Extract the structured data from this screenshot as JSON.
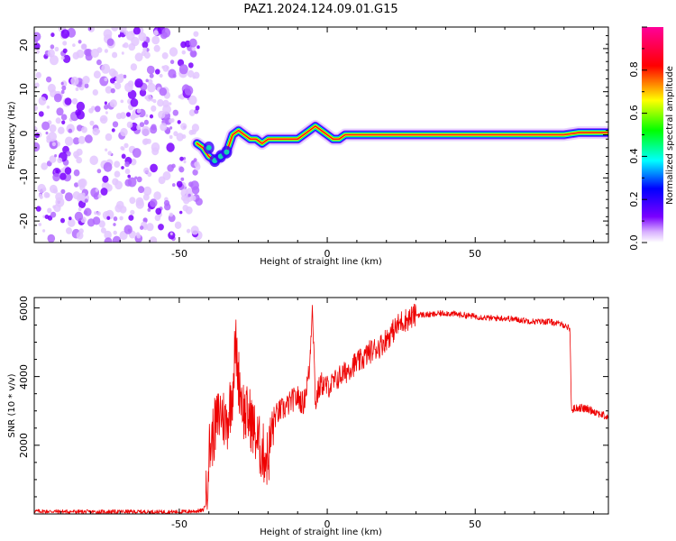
{
  "title": "PAZ1.2024.124.09.01.G15",
  "chart_data": [
    {
      "type": "heatmap",
      "xlabel": "Height of straight line (km)",
      "ylabel": "Frequency (Hz)",
      "xlim": [
        -99,
        95
      ],
      "ylim": [
        -25,
        25
      ],
      "x_ticks": [
        "-50",
        "0",
        "50"
      ],
      "y_ticks": [
        "-20",
        "-10",
        "0",
        "10",
        "20"
      ],
      "colorbar": {
        "label": "Normalized spectral amplitude",
        "range": [
          0,
          1
        ],
        "ticks": [
          "0.0",
          "0.2",
          "0.4",
          "0.6",
          "0.8"
        ],
        "colors": [
          "#ffffff",
          "#d8b0ff",
          "#7a00ff",
          "#0000ff",
          "#00ffff",
          "#00ff00",
          "#ffff00",
          "#ff0000",
          "#ff0099"
        ]
      },
      "noise_region_x": [
        -99,
        -43
      ],
      "ridge": {
        "x": [
          -44,
          -42,
          -40,
          -38,
          -36,
          -34,
          -32,
          -30,
          -28,
          -26,
          -24,
          -22,
          -20,
          -18,
          -16,
          -14,
          -12,
          -10,
          -8,
          -6,
          -4,
          -2,
          0,
          2,
          4,
          6,
          8,
          10,
          12,
          14,
          20,
          30,
          40,
          50,
          60,
          70,
          80,
          85,
          90,
          95
        ],
        "freq": [
          -2,
          -3,
          -5,
          -6,
          -5,
          -4,
          0,
          1,
          0,
          -1,
          -1,
          -2,
          -1,
          -1,
          -1,
          -1,
          -1,
          -1,
          0,
          1,
          2,
          1,
          0,
          -1,
          -1,
          0,
          0,
          0,
          0,
          0,
          0,
          0,
          0,
          0,
          0,
          0,
          0,
          0.5,
          0.5,
          0.5
        ]
      }
    },
    {
      "type": "line",
      "xlabel": "Height of straight line (km)",
      "ylabel": "SNR (10 * v/v)",
      "xlim": [
        -99,
        95
      ],
      "ylim": [
        0,
        6300
      ],
      "x_ticks": [
        "-50",
        "0",
        "50"
      ],
      "y_ticks": [
        "2000",
        "4000",
        "6000"
      ],
      "color": "#ff0000",
      "series": [
        {
          "x": [
            -99,
            -90,
            -80,
            -70,
            -60,
            -50,
            -45,
            -42,
            -41,
            -40,
            -38,
            -36,
            -34,
            -32,
            -31,
            -30,
            -28,
            -26,
            -24,
            -22,
            -20,
            -18,
            -16,
            -14,
            -12,
            -10,
            -8,
            -6,
            -5,
            -4,
            -3,
            -2,
            0,
            2,
            4,
            6,
            8,
            10,
            12,
            14,
            16,
            18,
            20,
            22,
            25,
            28,
            30,
            35,
            40,
            45,
            50,
            55,
            60,
            65,
            70,
            75,
            80,
            82,
            82.5,
            83,
            85,
            88,
            90,
            95
          ],
          "y": [
            80,
            70,
            60,
            65,
            60,
            60,
            80,
            100,
            300,
            1800,
            2500,
            3000,
            2600,
            3600,
            5000,
            4000,
            2900,
            2800,
            2200,
            1800,
            1600,
            2800,
            3000,
            3100,
            3300,
            3400,
            3200,
            4200,
            6200,
            3200,
            3600,
            3800,
            3700,
            3800,
            4000,
            4100,
            4300,
            4400,
            4500,
            4700,
            4800,
            4900,
            5100,
            5300,
            5600,
            5700,
            5800,
            5800,
            5850,
            5800,
            5750,
            5700,
            5700,
            5650,
            5600,
            5600,
            5500,
            5400,
            3000,
            3050,
            3100,
            3050,
            3000,
            2800
          ]
        }
      ]
    }
  ]
}
